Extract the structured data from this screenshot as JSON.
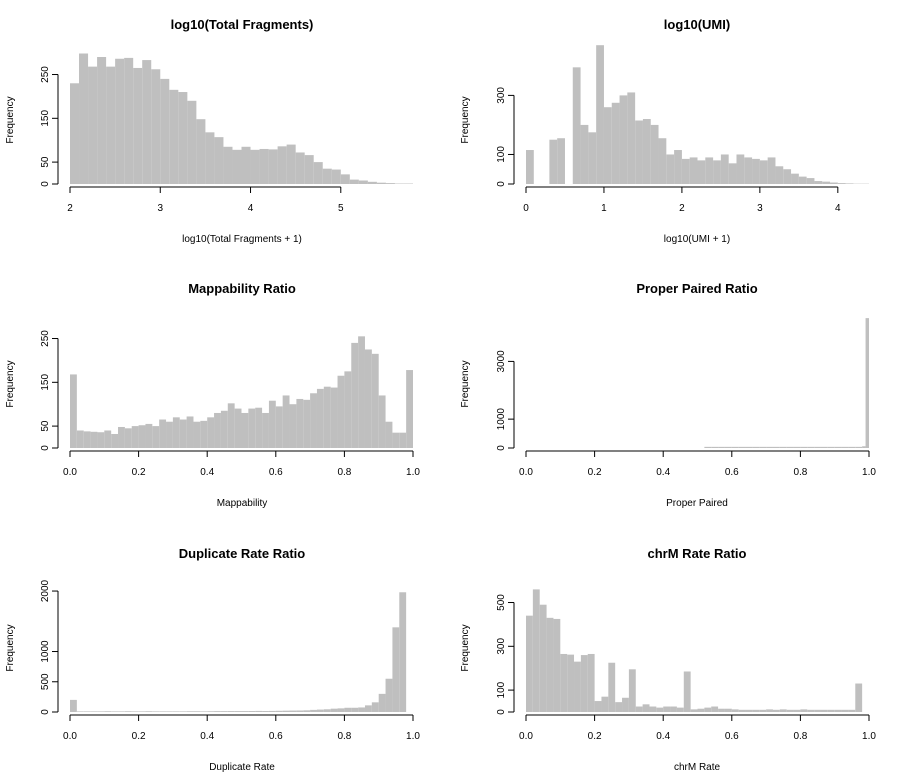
{
  "colors": {
    "bar": "#bfbfbf",
    "axis": "#000000",
    "background": "#ffffff"
  },
  "chart_data": [
    {
      "type": "bar",
      "title": "log10(Total Fragments)",
      "xlabel": "log10(Total Fragments + 1)",
      "ylabel": "Frequency",
      "xlim": [
        2.0,
        5.8
      ],
      "ylim": [
        0,
        290
      ],
      "x_ticks": [
        "2",
        "3",
        "4",
        "5"
      ],
      "x_tick_values": [
        2,
        3,
        4,
        5
      ],
      "y_ticks": [
        "0",
        "50",
        "150",
        "250"
      ],
      "y_tick_values": [
        0,
        50,
        150,
        250
      ],
      "bin_edges": [
        2.0,
        2.1,
        2.2,
        2.3,
        2.4,
        2.5,
        2.6,
        2.7,
        2.8,
        2.9,
        3.0,
        3.1,
        3.2,
        3.3,
        3.4,
        3.5,
        3.6,
        3.7,
        3.8,
        3.9,
        4.0,
        4.1,
        4.2,
        4.3,
        4.4,
        4.5,
        4.6,
        4.7,
        4.8,
        4.9,
        5.0,
        5.1,
        5.2,
        5.3,
        5.4,
        5.5,
        5.6,
        5.7,
        5.8
      ],
      "values": [
        230,
        298,
        268,
        290,
        268,
        286,
        288,
        265,
        283,
        262,
        240,
        215,
        210,
        190,
        148,
        118,
        107,
        85,
        78,
        85,
        78,
        80,
        79,
        86,
        90,
        72,
        66,
        50,
        35,
        33,
        22,
        10,
        8,
        5,
        3,
        2,
        1,
        1
      ]
    },
    {
      "type": "bar",
      "title": "log10(UMI)",
      "xlabel": "log10(UMI + 1)",
      "ylabel": "Frequency",
      "xlim": [
        0.0,
        4.4
      ],
      "ylim": [
        0,
        430
      ],
      "x_ticks": [
        "0",
        "1",
        "2",
        "3",
        "4"
      ],
      "x_tick_values": [
        0,
        1,
        2,
        3,
        4
      ],
      "y_ticks": [
        "0",
        "100",
        "300"
      ],
      "y_tick_values": [
        0,
        100,
        300
      ],
      "bin_edges": [
        0.0,
        0.1,
        0.2,
        0.3,
        0.4,
        0.5,
        0.6,
        0.7,
        0.8,
        0.9,
        1.0,
        1.1,
        1.2,
        1.3,
        1.4,
        1.5,
        1.6,
        1.7,
        1.8,
        1.9,
        2.0,
        2.1,
        2.2,
        2.3,
        2.4,
        2.5,
        2.6,
        2.7,
        2.8,
        2.9,
        3.0,
        3.1,
        3.2,
        3.3,
        3.4,
        3.5,
        3.6,
        3.7,
        3.8,
        3.9,
        4.0,
        4.1,
        4.2,
        4.3,
        4.4
      ],
      "values": [
        115,
        0,
        0,
        150,
        155,
        0,
        395,
        200,
        175,
        470,
        260,
        275,
        300,
        310,
        215,
        220,
        200,
        155,
        100,
        115,
        85,
        90,
        80,
        90,
        80,
        100,
        70,
        100,
        90,
        85,
        80,
        90,
        60,
        50,
        35,
        25,
        20,
        10,
        8,
        5,
        3,
        2,
        1,
        1
      ]
    },
    {
      "type": "bar",
      "title": "Mappability Ratio",
      "xlabel": "Mappability",
      "ylabel": "Frequency",
      "xlim": [
        0.0,
        1.0
      ],
      "ylim": [
        0,
        290
      ],
      "x_ticks": [
        "0.0",
        "0.2",
        "0.4",
        "0.6",
        "0.8",
        "1.0"
      ],
      "x_tick_values": [
        0.0,
        0.2,
        0.4,
        0.6,
        0.8,
        1.0
      ],
      "y_ticks": [
        "0",
        "50",
        "150",
        "250"
      ],
      "y_tick_values": [
        0,
        50,
        150,
        250
      ],
      "bin_edges": [
        0.0,
        0.02,
        0.04,
        0.06,
        0.08,
        0.1,
        0.12,
        0.14,
        0.16,
        0.18,
        0.2,
        0.22,
        0.24,
        0.26,
        0.28,
        0.3,
        0.32,
        0.34,
        0.36,
        0.38,
        0.4,
        0.42,
        0.44,
        0.46,
        0.48,
        0.5,
        0.52,
        0.54,
        0.56,
        0.58,
        0.6,
        0.62,
        0.64,
        0.66,
        0.68,
        0.7,
        0.72,
        0.74,
        0.76,
        0.78,
        0.8,
        0.82,
        0.84,
        0.86,
        0.88,
        0.9,
        0.92,
        0.94,
        0.96,
        0.98,
        1.0
      ],
      "values": [
        168,
        40,
        38,
        37,
        36,
        40,
        32,
        48,
        45,
        50,
        52,
        55,
        50,
        65,
        60,
        70,
        65,
        72,
        60,
        62,
        70,
        80,
        85,
        102,
        90,
        80,
        90,
        92,
        80,
        108,
        95,
        120,
        100,
        112,
        110,
        125,
        135,
        140,
        138,
        165,
        175,
        240,
        255,
        225,
        215,
        120,
        60,
        35,
        35,
        178
      ]
    },
    {
      "type": "bar",
      "title": "Proper Paired Ratio",
      "xlabel": "Proper Paired",
      "ylabel": "Frequency",
      "xlim": [
        0.0,
        1.0
      ],
      "ylim": [
        0,
        4400
      ],
      "x_ticks": [
        "0.0",
        "0.2",
        "0.4",
        "0.6",
        "0.8",
        "1.0"
      ],
      "x_tick_values": [
        0.0,
        0.2,
        0.4,
        0.6,
        0.8,
        1.0
      ],
      "y_ticks": [
        "0",
        "1000",
        "3000"
      ],
      "y_tick_values": [
        0,
        1000,
        3000
      ],
      "bin_edges": [
        0.0,
        0.52,
        0.54,
        0.56,
        0.58,
        0.6,
        0.62,
        0.64,
        0.66,
        0.68,
        0.7,
        0.72,
        0.74,
        0.76,
        0.78,
        0.8,
        0.82,
        0.84,
        0.86,
        0.88,
        0.9,
        0.92,
        0.94,
        0.96,
        0.98,
        0.99,
        1.0
      ],
      "values": [
        0,
        40,
        40,
        40,
        40,
        40,
        40,
        40,
        40,
        40,
        40,
        40,
        40,
        40,
        40,
        40,
        40,
        40,
        40,
        40,
        40,
        40,
        40,
        40,
        60,
        4500
      ]
    },
    {
      "type": "bar",
      "title": "Duplicate Rate Ratio",
      "xlabel": "Duplicate Rate",
      "ylabel": "Frequency",
      "xlim": [
        0.0,
        1.0
      ],
      "ylim": [
        0,
        2100
      ],
      "x_ticks": [
        "0.0",
        "0.2",
        "0.4",
        "0.6",
        "0.8",
        "1.0"
      ],
      "x_tick_values": [
        0.0,
        0.2,
        0.4,
        0.6,
        0.8,
        1.0
      ],
      "y_ticks": [
        "0",
        "500",
        "1000",
        "2000"
      ],
      "y_tick_values": [
        0,
        500,
        1000,
        2000
      ],
      "bin_edges": [
        0.0,
        0.02,
        0.04,
        0.06,
        0.08,
        0.1,
        0.12,
        0.14,
        0.16,
        0.18,
        0.2,
        0.22,
        0.24,
        0.26,
        0.28,
        0.3,
        0.32,
        0.34,
        0.36,
        0.38,
        0.4,
        0.42,
        0.44,
        0.46,
        0.48,
        0.5,
        0.52,
        0.54,
        0.56,
        0.58,
        0.6,
        0.62,
        0.64,
        0.66,
        0.68,
        0.7,
        0.72,
        0.74,
        0.76,
        0.78,
        0.8,
        0.82,
        0.84,
        0.86,
        0.88,
        0.9,
        0.92,
        0.94,
        0.96,
        0.98,
        1.0
      ],
      "values": [
        200,
        10,
        10,
        10,
        10,
        12,
        10,
        10,
        12,
        10,
        10,
        12,
        10,
        10,
        10,
        10,
        10,
        12,
        12,
        10,
        12,
        14,
        14,
        15,
        15,
        15,
        16,
        18,
        16,
        18,
        20,
        22,
        24,
        25,
        28,
        35,
        40,
        45,
        55,
        60,
        70,
        70,
        75,
        110,
        160,
        300,
        550,
        1400,
        1980,
        0
      ]
    },
    {
      "type": "bar",
      "title": "chrM Rate Ratio",
      "xlabel": "chrM Rate",
      "ylabel": "Frequency",
      "xlim": [
        0.0,
        1.0
      ],
      "ylim": [
        0,
        580
      ],
      "x_ticks": [
        "0.0",
        "0.2",
        "0.4",
        "0.6",
        "0.8",
        "1.0"
      ],
      "x_tick_values": [
        0.0,
        0.2,
        0.4,
        0.6,
        0.8,
        1.0
      ],
      "y_ticks": [
        "0",
        "100",
        "300",
        "500"
      ],
      "y_tick_values": [
        0,
        100,
        300,
        500
      ],
      "bin_edges": [
        0.0,
        0.02,
        0.04,
        0.06,
        0.08,
        0.1,
        0.12,
        0.14,
        0.16,
        0.18,
        0.2,
        0.22,
        0.24,
        0.26,
        0.28,
        0.3,
        0.32,
        0.34,
        0.36,
        0.38,
        0.4,
        0.42,
        0.44,
        0.46,
        0.48,
        0.5,
        0.52,
        0.54,
        0.56,
        0.58,
        0.6,
        0.62,
        0.64,
        0.66,
        0.68,
        0.7,
        0.72,
        0.74,
        0.76,
        0.78,
        0.8,
        0.82,
        0.84,
        0.86,
        0.88,
        0.9,
        0.92,
        0.94,
        0.96,
        0.98,
        1.0
      ],
      "values": [
        440,
        560,
        490,
        430,
        425,
        265,
        262,
        230,
        260,
        265,
        50,
        70,
        225,
        45,
        65,
        195,
        25,
        35,
        25,
        20,
        25,
        25,
        20,
        185,
        12,
        15,
        20,
        25,
        15,
        15,
        12,
        10,
        10,
        10,
        10,
        12,
        10,
        12,
        10,
        10,
        12,
        10,
        10,
        10,
        10,
        10,
        10,
        10,
        130,
        0
      ]
    }
  ]
}
